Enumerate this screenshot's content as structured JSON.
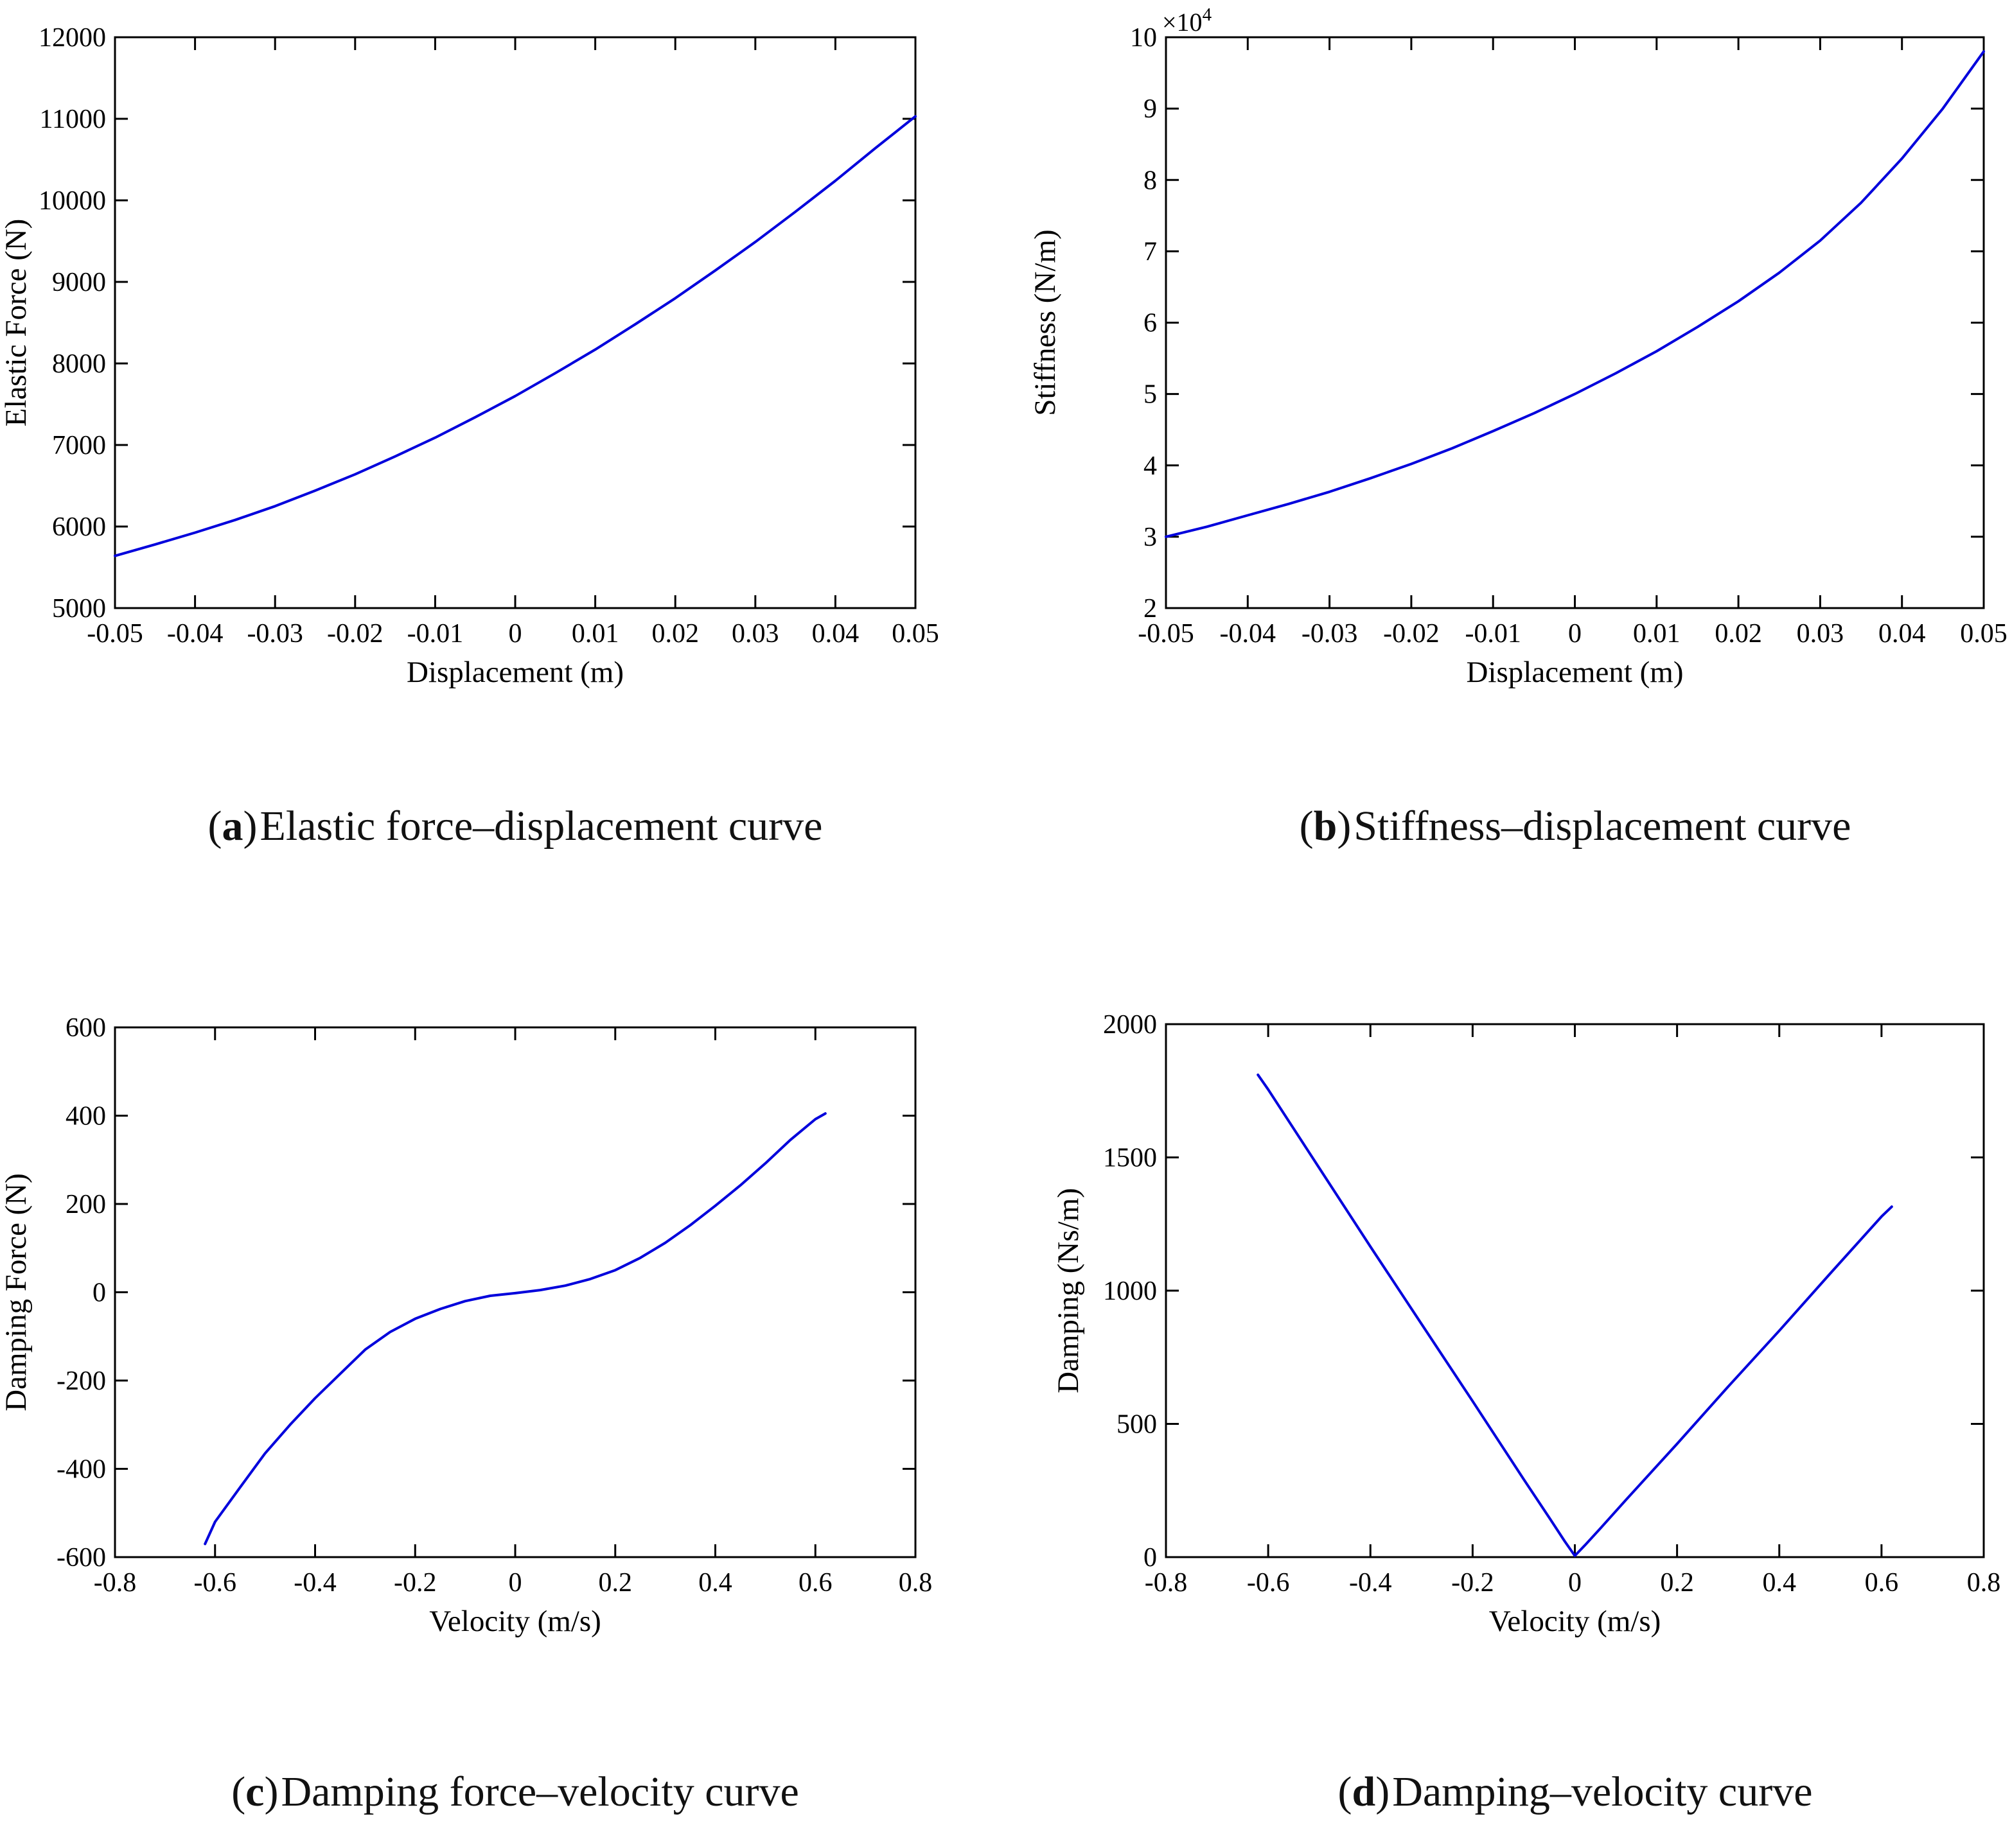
{
  "background": "#ffffff",
  "chart_data": [
    {
      "id": "a",
      "type": "line",
      "caption": {
        "open": "(",
        "letter": "a",
        "close": ")",
        "text": "Elastic force–displacement curve"
      },
      "xlabel": "Displacement (m)",
      "ylabel": "Elastic Force (N)",
      "xlim": [
        -0.05,
        0.05
      ],
      "ylim": [
        5000,
        12000
      ],
      "x_ticks": [
        -0.05,
        -0.04,
        -0.03,
        -0.02,
        -0.01,
        0,
        0.01,
        0.02,
        0.03,
        0.04,
        0.05
      ],
      "x_tick_labels": [
        "-0.05",
        "-0.04",
        "-0.03",
        "-0.02",
        "-0.01",
        "0",
        "0.01",
        "0.02",
        "0.03",
        "0.04",
        "0.05"
      ],
      "y_ticks": [
        5000,
        6000,
        7000,
        8000,
        9000,
        10000,
        11000,
        12000
      ],
      "y_tick_labels": [
        "5000",
        "6000",
        "7000",
        "8000",
        "9000",
        "10000",
        "11000",
        "12000"
      ],
      "exponent_label": null,
      "grid": false,
      "box_on": true,
      "legend": null,
      "line_color": "#0000DC",
      "x": [
        -0.05,
        -0.045,
        -0.04,
        -0.035,
        -0.03,
        -0.025,
        -0.02,
        -0.015,
        -0.01,
        -0.005,
        0,
        0.005,
        0.01,
        0.015,
        0.02,
        0.025,
        0.03,
        0.035,
        0.04,
        0.045,
        0.05
      ],
      "y": [
        5640,
        5780,
        5925,
        6080,
        6250,
        6440,
        6640,
        6860,
        7090,
        7340,
        7600,
        7880,
        8170,
        8480,
        8800,
        9140,
        9490,
        9860,
        10240,
        10640,
        11030
      ]
    },
    {
      "id": "b",
      "type": "line",
      "caption": {
        "open": "(",
        "letter": "b",
        "close": ")",
        "text": "Stiffness–displacement curve"
      },
      "xlabel": "Displacement (m)",
      "ylabel": "Stiffness (N/m)",
      "xlim": [
        -0.05,
        0.05
      ],
      "ylim": [
        20000,
        100000
      ],
      "x_ticks": [
        -0.05,
        -0.04,
        -0.03,
        -0.02,
        -0.01,
        0,
        0.01,
        0.02,
        0.03,
        0.04,
        0.05
      ],
      "x_tick_labels": [
        "-0.05",
        "-0.04",
        "-0.03",
        "-0.02",
        "-0.01",
        "0",
        "0.01",
        "0.02",
        "0.03",
        "0.04",
        "0.05"
      ],
      "y_ticks": [
        20000,
        30000,
        40000,
        50000,
        60000,
        70000,
        80000,
        90000,
        100000
      ],
      "y_tick_labels": [
        "2",
        "3",
        "4",
        "5",
        "6",
        "7",
        "8",
        "9",
        "10"
      ],
      "exponent_label": "×10",
      "exponent_power": "4",
      "grid": false,
      "box_on": true,
      "legend": null,
      "line_color": "#0000DC",
      "x": [
        -0.05,
        -0.045,
        -0.04,
        -0.035,
        -0.03,
        -0.025,
        -0.02,
        -0.015,
        -0.01,
        -0.005,
        0,
        0.005,
        0.01,
        0.015,
        0.02,
        0.025,
        0.03,
        0.035,
        0.04,
        0.045,
        0.05
      ],
      "y": [
        30000,
        31400,
        33000,
        34600,
        36300,
        38200,
        40200,
        42400,
        44800,
        47300,
        50000,
        52900,
        56000,
        59400,
        63000,
        67000,
        71500,
        76800,
        83000,
        90000,
        98000
      ]
    },
    {
      "id": "c",
      "type": "line",
      "caption": {
        "open": "(",
        "letter": "c",
        "close": ")",
        "text": "Damping force–velocity curve"
      },
      "xlabel": "Velocity (m/s)",
      "ylabel": "Damping Force (N)",
      "xlim": [
        -0.8,
        0.8
      ],
      "ylim": [
        -600,
        600
      ],
      "x_ticks": [
        -0.8,
        -0.6,
        -0.4,
        -0.2,
        0,
        0.2,
        0.4,
        0.6,
        0.8
      ],
      "x_tick_labels": [
        "-0.8",
        "-0.6",
        "-0.4",
        "-0.2",
        "0",
        "0.2",
        "0.4",
        "0.6",
        "0.8"
      ],
      "y_ticks": [
        -600,
        -400,
        -200,
        0,
        200,
        400,
        600
      ],
      "y_tick_labels": [
        "-600",
        "-400",
        "-200",
        "0",
        "200",
        "400",
        "600"
      ],
      "exponent_label": null,
      "grid": false,
      "box_on": true,
      "legend": null,
      "line_color": "#0000DC",
      "x": [
        -0.62,
        -0.6,
        -0.55,
        -0.5,
        -0.45,
        -0.4,
        -0.35,
        -0.3,
        -0.25,
        -0.2,
        -0.15,
        -0.1,
        -0.05,
        0,
        0.05,
        0.1,
        0.15,
        0.2,
        0.25,
        0.3,
        0.35,
        0.4,
        0.45,
        0.5,
        0.55,
        0.6,
        0.62
      ],
      "y": [
        -570,
        -520,
        -442,
        -365,
        -300,
        -240,
        -185,
        -130,
        -90,
        -60,
        -38,
        -20,
        -8,
        -2,
        5,
        15,
        30,
        50,
        78,
        112,
        152,
        196,
        242,
        292,
        345,
        392,
        405
      ]
    },
    {
      "id": "d",
      "type": "line",
      "caption": {
        "open": "(",
        "letter": "d",
        "close": ")",
        "text": "Damping–velocity curve"
      },
      "xlabel": "Velocity (m/s)",
      "ylabel": "Damping (Ns/m)",
      "xlim": [
        -0.8,
        0.8
      ],
      "ylim": [
        0,
        2000
      ],
      "x_ticks": [
        -0.8,
        -0.6,
        -0.4,
        -0.2,
        0,
        0.2,
        0.4,
        0.6,
        0.8
      ],
      "x_tick_labels": [
        "-0.8",
        "-0.6",
        "-0.4",
        "-0.2",
        "0",
        "0.2",
        "0.4",
        "0.6",
        "0.8"
      ],
      "y_ticks": [
        0,
        500,
        1000,
        1500,
        2000
      ],
      "y_tick_labels": [
        "0",
        "500",
        "1000",
        "1500",
        "2000"
      ],
      "exponent_label": null,
      "grid": false,
      "box_on": true,
      "legend": null,
      "line_color": "#0000DC",
      "x": [
        -0.62,
        -0.6,
        -0.5,
        -0.4,
        -0.3,
        -0.2,
        -0.1,
        -0.05,
        -0.02,
        0,
        0.02,
        0.05,
        0.1,
        0.2,
        0.3,
        0.4,
        0.5,
        0.6,
        0.62
      ],
      "y": [
        1810,
        1755,
        1460,
        1165,
        875,
        585,
        292,
        148,
        60,
        5,
        45,
        108,
        215,
        425,
        640,
        850,
        1065,
        1278,
        1315
      ]
    }
  ]
}
